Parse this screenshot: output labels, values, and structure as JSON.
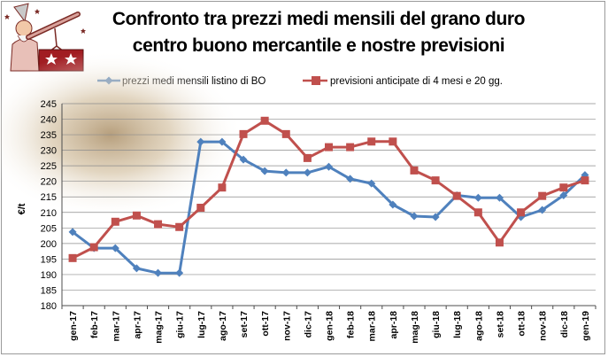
{
  "title": {
    "line1": "Confronto tra prezzi medi mensili del grano duro",
    "line2": "centro buono mercantile e nostre previsioni"
  },
  "colors": {
    "series1": "#4f81bd",
    "series2": "#c0504d",
    "grid": "#8c8c8c",
    "axis": "#4d4d4d"
  },
  "logo": {
    "icon": "astronomer-telescope-logo"
  },
  "chart_data": {
    "type": "line",
    "ylabel": "€/t",
    "ylim": [
      180,
      245
    ],
    "ytick_step": 5,
    "grid": true,
    "legend_position": "top",
    "categories": [
      "gen-17",
      "feb-17",
      "mar-17",
      "apr-17",
      "mag-17",
      "giu-17",
      "lug-17",
      "ago-17",
      "set-17",
      "ott-17",
      "nov-17",
      "dic-17",
      "gen-18",
      "feb-18",
      "mar-18",
      "apr-18",
      "mag-18",
      "giu-18",
      "lug-18",
      "ago-18",
      "set-18",
      "ott-18",
      "nov-18",
      "dic-18",
      "gen-19"
    ],
    "series": [
      {
        "name": "prezzi medi mensili listino di BO",
        "marker": "diamond",
        "values": [
          203.7,
          198.5,
          198.5,
          192,
          190.5,
          190.5,
          232.7,
          232.7,
          227,
          223.3,
          222.8,
          222.8,
          224.7,
          220.8,
          219.3,
          212.5,
          208.8,
          208.5,
          215.5,
          214.7,
          214.7,
          208.5,
          210.8,
          215.5,
          222
        ]
      },
      {
        "name": "previsioni anticipate di 4 mesi e 20 gg.",
        "marker": "square",
        "values": [
          195.3,
          198.8,
          207,
          209,
          206.2,
          205.3,
          211.5,
          218,
          235.2,
          239.5,
          235.2,
          227.5,
          231,
          231,
          232.8,
          232.8,
          223.5,
          220.3,
          215.3,
          210,
          200.3,
          210,
          215.3,
          218,
          220.3
        ]
      }
    ]
  }
}
